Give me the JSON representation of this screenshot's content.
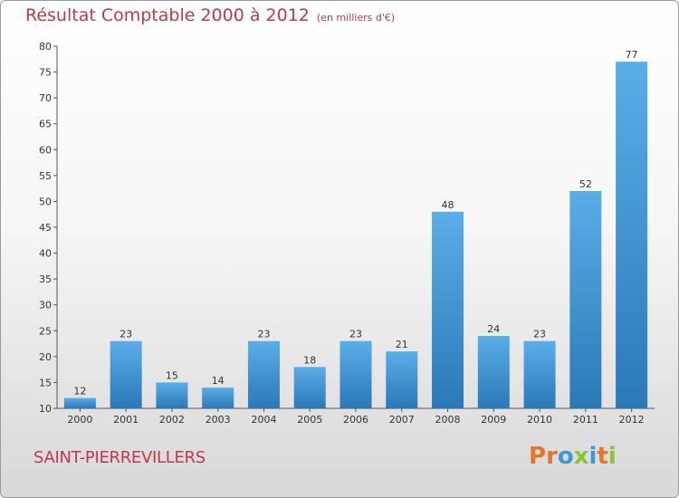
{
  "header": {
    "title": "Résultat Comptable 2000 à 2012",
    "subtitle": "(en milliers d'€)"
  },
  "footer": {
    "commune": "SAINT-PIERREVILLERS",
    "logo": "Proxiti",
    "logo_colors": [
      "#e8752a",
      "#e8752a",
      "#3a9ad9",
      "#8bc33a",
      "#3a9ad9",
      "#e8752a",
      "#8bc33a"
    ]
  },
  "chart_data": {
    "type": "bar",
    "title": "Résultat Comptable 2000 à 2012",
    "subtitle": "(en milliers d'€)",
    "categories": [
      "2000",
      "2001",
      "2002",
      "2003",
      "2004",
      "2005",
      "2006",
      "2007",
      "2008",
      "2009",
      "2010",
      "2011",
      "2012"
    ],
    "values": [
      12,
      23,
      15,
      14,
      23,
      18,
      23,
      21,
      48,
      24,
      23,
      52,
      77
    ],
    "ylim": [
      10,
      80
    ],
    "yticks": [
      10,
      15,
      20,
      25,
      30,
      35,
      40,
      45,
      50,
      55,
      60,
      65,
      70,
      75,
      80
    ],
    "grid": false,
    "legend": "none",
    "bar_color_top": "#5aaee8",
    "bar_color_bottom": "#2a78b8"
  }
}
